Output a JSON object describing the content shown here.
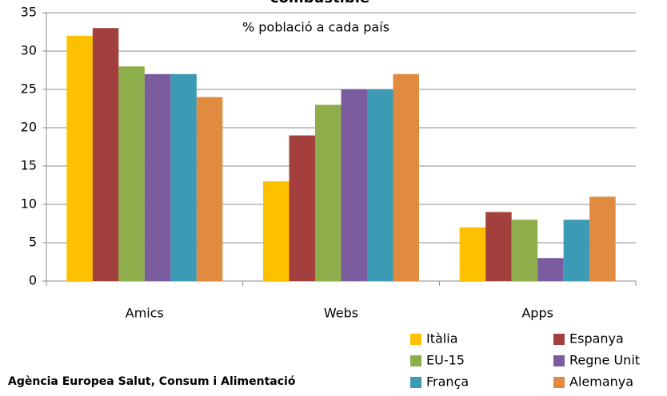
{
  "chart_data": {
    "type": "bar",
    "title": "combustible",
    "subtitle": "% població a cada país",
    "source": "Agència Europea Salut, Consum i Alimentació",
    "categories": [
      "Amics",
      "Webs",
      "Apps"
    ],
    "series": [
      {
        "name": "Itàlia",
        "color": "#ffc000",
        "values": [
          32,
          13,
          7
        ]
      },
      {
        "name": "Espanya",
        "color": "#a3403d",
        "values": [
          33,
          19,
          9
        ]
      },
      {
        "name": "EU-15",
        "color": "#8ead4b",
        "values": [
          28,
          23,
          8
        ]
      },
      {
        "name": "Regne Unit",
        "color": "#7b5c9e",
        "values": [
          27,
          25,
          3
        ]
      },
      {
        "name": "França",
        "color": "#3c9ab5",
        "values": [
          27,
          25,
          8
        ]
      },
      {
        "name": "Alemanya",
        "color": "#e08b3f",
        "values": [
          24,
          27,
          11
        ]
      }
    ],
    "ylim": [
      0,
      35
    ],
    "yticks": [
      0,
      5,
      10,
      15,
      20,
      25,
      30,
      35
    ],
    "grid": true,
    "legend": "bottom-right"
  }
}
